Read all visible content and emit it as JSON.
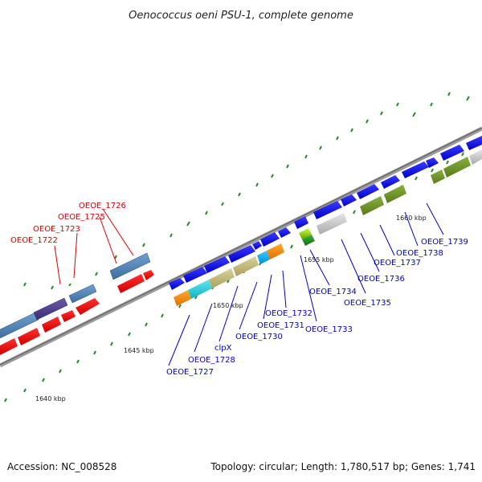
{
  "title": "Oenococcus oeni PSU-1, complete genome",
  "footer": {
    "accession": "Accession: NC_008528",
    "topology": "Topology: circular; Length: 1,780,517 bp; Genes: 1,741"
  },
  "kbp_labels": [
    "1640 kbp",
    "1645 kbp",
    "1650 kbp",
    "1655 kbp",
    "1660 kbp"
  ],
  "colors": {
    "backbone": "#8a8a8a",
    "tick": "#2a8a2a",
    "red_label": "#dd0000",
    "blue_label": "#0000cc"
  },
  "gene_labels_top": [
    {
      "text": "OEOE_1726",
      "color": "#dd0000"
    },
    {
      "text": "OEOE_1725",
      "color": "#dd0000"
    },
    {
      "text": "OEOE_1723",
      "color": "#dd0000"
    },
    {
      "text": "OEOE_1722",
      "color": "#dd0000"
    }
  ],
  "gene_labels_bottom": [
    {
      "text": "OEOE_1739",
      "color": "#0000cc"
    },
    {
      "text": "OEOE_1738",
      "color": "#0000cc"
    },
    {
      "text": "OEOE_1737",
      "color": "#0000cc"
    },
    {
      "text": "OEOE_1736",
      "color": "#0000cc"
    },
    {
      "text": "OEOE_1735",
      "color": "#0000cc"
    },
    {
      "text": "OEOE_1734",
      "color": "#0000cc"
    },
    {
      "text": "OEOE_1733",
      "color": "#0000cc"
    },
    {
      "text": "OEOE_1732",
      "color": "#0000cc"
    },
    {
      "text": "OEOE_1731",
      "color": "#0000cc"
    },
    {
      "text": "OEOE_1730",
      "color": "#0000cc"
    },
    {
      "text": "clpX",
      "color": "#0000cc"
    },
    {
      "text": "OEOE_1728",
      "color": "#0000cc"
    },
    {
      "text": "OEOE_1727",
      "color": "#0000cc"
    }
  ]
}
